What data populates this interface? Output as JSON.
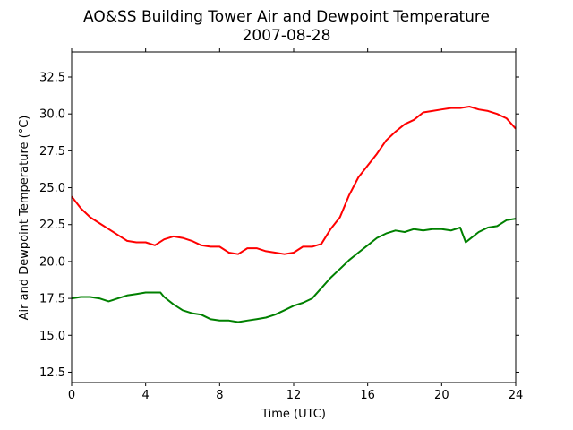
{
  "chart_data": {
    "type": "line",
    "title": "AO&SS Building Tower Air and Dewpoint Temperature",
    "subtitle": "2007-08-28",
    "xlabel": "Time (UTC)",
    "ylabel": "Air and Dewpoint Temperature (°C)",
    "xlim": [
      0,
      24
    ],
    "ylim": [
      11.8,
      34.2
    ],
    "xticks": [
      0,
      4,
      8,
      12,
      16,
      20,
      24
    ],
    "xtick_labels": [
      "0",
      "4",
      "8",
      "12",
      "16",
      "20",
      "24"
    ],
    "yticks": [
      12.5,
      15.0,
      17.5,
      20.0,
      22.5,
      25.0,
      27.5,
      30.0,
      32.5
    ],
    "ytick_labels": [
      "12.5",
      "15.0",
      "17.5",
      "20.0",
      "22.5",
      "25.0",
      "27.5",
      "30.0",
      "32.5"
    ],
    "grid": false,
    "legend": "none",
    "series": [
      {
        "color": "#ff0000",
        "x": [
          0,
          0.5,
          1,
          1.5,
          2,
          2.5,
          3,
          3.5,
          4,
          4.5,
          5,
          5.5,
          6,
          6.5,
          7,
          7.5,
          8,
          8.5,
          9,
          9.5,
          10,
          10.5,
          11,
          11.5,
          12,
          12.5,
          13,
          13.5,
          14,
          14.5,
          15,
          15.5,
          16,
          16.5,
          17,
          17.5,
          18,
          18.5,
          19,
          19.5,
          20,
          20.5,
          21,
          21.5,
          22,
          22.5,
          23,
          23.5,
          24
        ],
        "y": [
          24.4,
          23.6,
          23.0,
          22.6,
          22.2,
          21.8,
          21.4,
          21.3,
          21.3,
          21.1,
          21.5,
          21.7,
          21.6,
          21.4,
          21.1,
          21.0,
          21.0,
          20.6,
          20.5,
          20.9,
          20.9,
          20.7,
          20.6,
          20.5,
          20.6,
          21.0,
          21.0,
          21.2,
          22.2,
          23.0,
          24.5,
          25.7,
          26.5,
          27.3,
          28.2,
          28.8,
          29.3,
          29.6,
          30.1,
          30.2,
          30.3,
          30.4,
          30.4,
          30.5,
          30.3,
          30.2,
          30.0,
          29.7,
          29.0
        ]
      },
      {
        "color": "#008000",
        "x": [
          0,
          0.5,
          1,
          1.5,
          2,
          2.5,
          3,
          3.5,
          4,
          4.5,
          4.8,
          5,
          5.5,
          6,
          6.5,
          7,
          7.5,
          8,
          8.5,
          9,
          9.5,
          10,
          10.5,
          11,
          11.5,
          12,
          12.5,
          13,
          13.5,
          14,
          14.5,
          15,
          15.5,
          16,
          16.5,
          17,
          17.5,
          18,
          18.5,
          19,
          19.5,
          20,
          20.5,
          21,
          21.3,
          21.5,
          22,
          22.5,
          23,
          23.5,
          24
        ],
        "y": [
          17.5,
          17.6,
          17.6,
          17.5,
          17.3,
          17.5,
          17.7,
          17.8,
          17.9,
          17.9,
          17.9,
          17.6,
          17.1,
          16.7,
          16.5,
          16.4,
          16.1,
          16.0,
          16.0,
          15.9,
          16.0,
          16.1,
          16.2,
          16.4,
          16.7,
          17.0,
          17.2,
          17.5,
          18.2,
          18.9,
          19.5,
          20.1,
          20.6,
          21.1,
          21.6,
          21.9,
          22.1,
          22.0,
          22.2,
          22.1,
          22.2,
          22.2,
          22.1,
          22.3,
          21.3,
          21.5,
          22.0,
          22.3,
          22.4,
          22.8,
          22.9
        ]
      }
    ]
  }
}
